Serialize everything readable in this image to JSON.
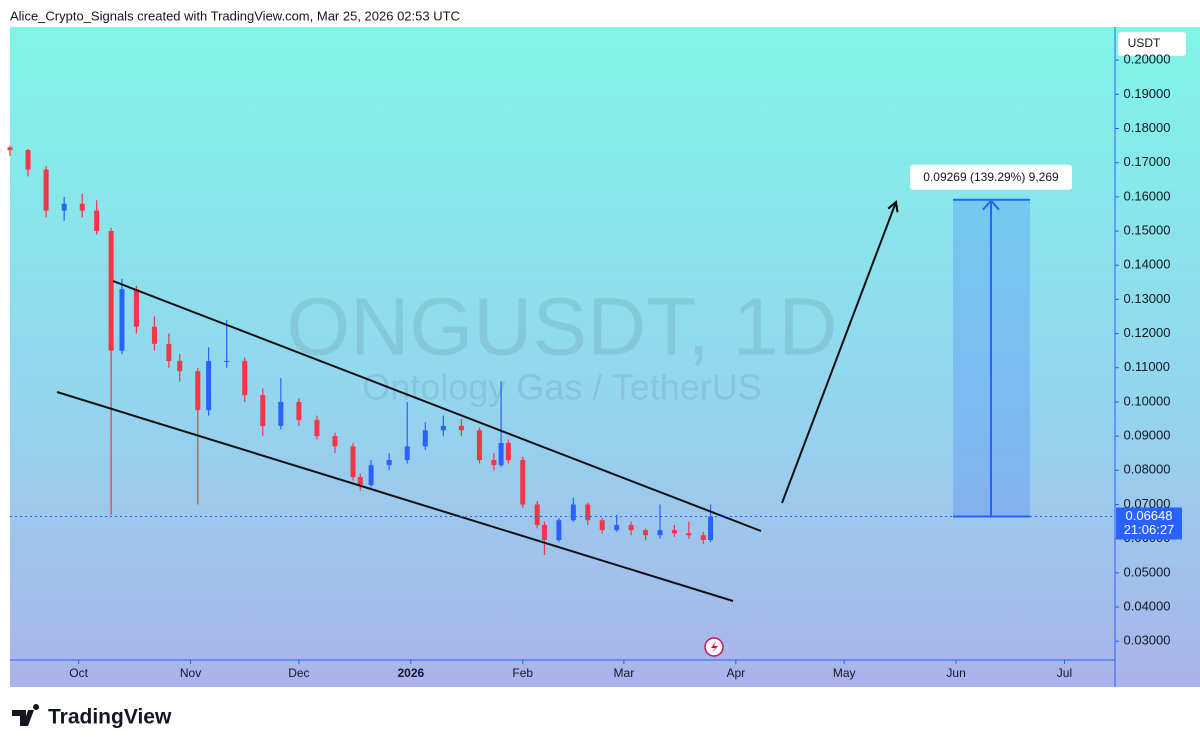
{
  "header": "Alice_Crypto_Signals created with TradingView.com, Mar 25, 2026 02:53 UTC",
  "chart_data": {
    "type": "candlestick",
    "title": "ONGUSDT, 1D",
    "subtitle": "Ontology Gas / TetherUS",
    "y_axis_label": "USDT",
    "x": [
      0,
      5,
      10,
      15,
      20,
      24,
      28,
      31,
      35,
      40,
      44,
      47,
      52,
      55,
      60,
      65,
      70,
      75,
      80,
      85,
      90,
      95,
      97,
      100,
      105,
      110,
      115,
      120,
      125,
      130,
      134,
      136,
      138,
      142,
      146,
      148,
      152,
      156,
      160,
      164,
      168,
      172,
      176,
      180,
      184,
      188,
      192,
      194
    ],
    "open": [
      0.1745,
      0.1737,
      0.168,
      0.156,
      0.158,
      0.156,
      0.15,
      0.115,
      0.133,
      0.122,
      0.117,
      0.112,
      0.109,
      0.0976,
      0.112,
      0.112,
      0.102,
      0.093,
      0.1,
      0.0947,
      0.09,
      0.087,
      0.078,
      0.0757,
      0.0815,
      0.083,
      0.087,
      0.0917,
      0.093,
      0.0917,
      0.083,
      0.0815,
      0.088,
      0.083,
      0.07,
      0.064,
      0.0596,
      0.0654,
      0.07,
      0.0654,
      0.0625,
      0.064,
      0.0625,
      0.061,
      0.0625,
      0.0616,
      0.061,
      0.0596
    ],
    "high": [
      0.175,
      0.174,
      0.169,
      0.16,
      0.161,
      0.159,
      0.151,
      0.136,
      0.134,
      0.125,
      0.12,
      0.114,
      0.11,
      0.116,
      0.124,
      0.113,
      0.104,
      0.107,
      0.101,
      0.096,
      0.091,
      0.088,
      0.079,
      0.083,
      0.085,
      0.1,
      0.094,
      0.096,
      0.095,
      0.0925,
      0.085,
      0.106,
      0.089,
      0.084,
      0.071,
      0.065,
      0.066,
      0.072,
      0.0705,
      0.066,
      0.067,
      0.065,
      0.063,
      0.07,
      0.064,
      0.065,
      0.062,
      0.07
    ],
    "low": [
      0.172,
      0.166,
      0.154,
      0.153,
      0.154,
      0.149,
      0.067,
      0.114,
      0.12,
      0.115,
      0.11,
      0.106,
      0.07,
      0.096,
      0.11,
      0.1,
      0.09,
      0.092,
      0.093,
      0.089,
      0.085,
      0.077,
      0.074,
      0.075,
      0.08,
      0.082,
      0.086,
      0.09,
      0.09,
      0.082,
      0.08,
      0.081,
      0.082,
      0.069,
      0.063,
      0.0552,
      0.059,
      0.065,
      0.064,
      0.0615,
      0.062,
      0.061,
      0.0595,
      0.06,
      0.0605,
      0.06,
      0.0585,
      0.059
    ],
    "close": [
      0.1737,
      0.168,
      0.156,
      0.158,
      0.156,
      0.15,
      0.115,
      0.133,
      0.122,
      0.117,
      0.112,
      0.109,
      0.0976,
      0.112,
      0.112,
      0.102,
      0.093,
      0.1,
      0.0947,
      0.09,
      0.087,
      0.078,
      0.0757,
      0.0815,
      0.083,
      0.087,
      0.0917,
      0.093,
      0.0917,
      0.083,
      0.0815,
      0.088,
      0.083,
      0.07,
      0.064,
      0.0596,
      0.0654,
      0.07,
      0.0654,
      0.0625,
      0.064,
      0.0625,
      0.061,
      0.0625,
      0.0616,
      0.061,
      0.0596,
      0.06648
    ],
    "up_color": "#2962ff",
    "down_color": "#f23645",
    "xlim": [
      0,
      306
    ],
    "xticks": [
      {
        "value": 19,
        "label": "Oct"
      },
      {
        "value": 50,
        "label": "Nov"
      },
      {
        "value": 80,
        "label": "Dec"
      },
      {
        "value": 111,
        "label": "2026",
        "bold": true
      },
      {
        "value": 142,
        "label": "Feb"
      },
      {
        "value": 170,
        "label": "Mar"
      },
      {
        "value": 201,
        "label": "Apr"
      },
      {
        "value": 231,
        "label": "May"
      },
      {
        "value": 262,
        "label": "Jun"
      },
      {
        "value": 292,
        "label": "Jul"
      }
    ],
    "ylim": [
      0.0245,
      0.2097
    ],
    "yticks": [
      {
        "value": 0.03,
        "label": "0.03000"
      },
      {
        "value": 0.04,
        "label": "0.04000"
      },
      {
        "value": 0.05,
        "label": "0.05000"
      },
      {
        "value": 0.06,
        "label": "0.06000"
      },
      {
        "value": 0.07,
        "label": "0.07000"
      },
      {
        "value": 0.08,
        "label": "0.08000"
      },
      {
        "value": 0.09,
        "label": "0.09000"
      },
      {
        "value": 0.1,
        "label": "0.10000"
      },
      {
        "value": 0.11,
        "label": "0.11000"
      },
      {
        "value": 0.12,
        "label": "0.12000"
      },
      {
        "value": 0.13,
        "label": "0.13000"
      },
      {
        "value": 0.14,
        "label": "0.14000"
      },
      {
        "value": 0.15,
        "label": "0.15000"
      },
      {
        "value": 0.16,
        "label": "0.16000"
      },
      {
        "value": 0.17,
        "label": "0.17000"
      },
      {
        "value": 0.18,
        "label": "0.18000"
      },
      {
        "value": 0.19,
        "label": "0.19000"
      },
      {
        "value": 0.2,
        "label": "0.20000"
      }
    ],
    "last_price": 0.06648,
    "countdown": "21:06:27",
    "measure": {
      "value": 0.09269,
      "label": "0.09269 (139.29%) 9,269"
    }
  },
  "footer": {
    "brand": "TradingView"
  }
}
